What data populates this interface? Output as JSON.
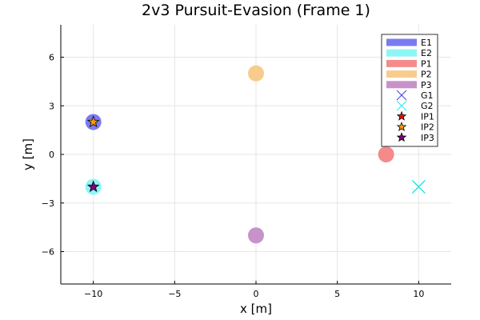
{
  "chart_data": {
    "type": "scatter",
    "title": "2v3 Pursuit-Evasion (Frame 1)",
    "xlabel": "x [m]",
    "ylabel": "y [m]",
    "xlim": [
      -12,
      12
    ],
    "ylim": [
      -8,
      8
    ],
    "xticks": [
      -10,
      -5,
      0,
      5,
      10
    ],
    "yticks": [
      -6,
      -3,
      0,
      3,
      6
    ],
    "xtick_labels": [
      "−10",
      "−5",
      "0",
      "5",
      "10"
    ],
    "ytick_labels": [
      "−6",
      "−3",
      "0",
      "3",
      "6"
    ],
    "grid": true,
    "legend_position": "top-right",
    "series": [
      {
        "name": "E1",
        "marker": "circle",
        "color": "#7b7bf0",
        "points": [
          [
            -10,
            2
          ]
        ]
      },
      {
        "name": "E2",
        "marker": "circle",
        "color": "#8ef5f5",
        "points": [
          [
            -10,
            -2
          ]
        ]
      },
      {
        "name": "P1",
        "marker": "circle",
        "color": "#f58a8a",
        "points": [
          [
            8,
            0
          ]
        ]
      },
      {
        "name": "P2",
        "marker": "circle",
        "color": "#f8cc8c",
        "points": [
          [
            0,
            5
          ]
        ]
      },
      {
        "name": "P3",
        "marker": "circle",
        "color": "#c792c9",
        "points": [
          [
            0,
            -5
          ]
        ]
      },
      {
        "name": "G1",
        "marker": "x",
        "color": "#3c3cf0",
        "points": []
      },
      {
        "name": "G2",
        "marker": "x",
        "color": "#20e8e8",
        "points": [
          [
            10,
            -2
          ]
        ]
      },
      {
        "name": "IP1",
        "marker": "star",
        "color": "#ff0000",
        "points": []
      },
      {
        "name": "IP2",
        "marker": "star",
        "color": "#ff9900",
        "points": [
          [
            -10,
            2
          ]
        ]
      },
      {
        "name": "IP3",
        "marker": "star",
        "color": "#800080",
        "points": [
          [
            -10,
            -2
          ]
        ]
      }
    ]
  }
}
